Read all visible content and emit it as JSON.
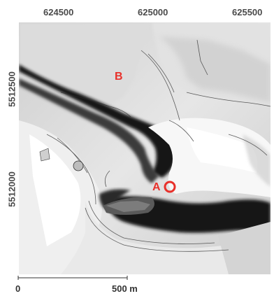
{
  "axes": {
    "x_ticks": [
      "624500",
      "625000",
      "625500"
    ],
    "y_ticks": [
      "5512500",
      "5512000"
    ]
  },
  "markers": {
    "a": {
      "label": "A",
      "color": "#e8302a"
    },
    "b": {
      "label": "B",
      "color": "#e8302a"
    }
  },
  "scale_bar": {
    "start_label": "0",
    "end_label": "500 m"
  },
  "colors": {
    "terrain_dark": "#111111",
    "terrain_light": "#f4f4f4",
    "marker": "#e8302a"
  }
}
